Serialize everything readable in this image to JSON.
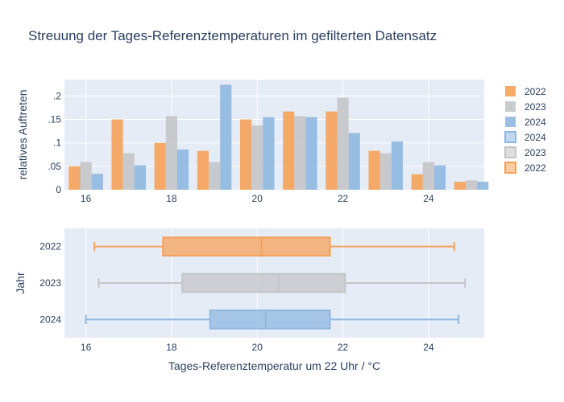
{
  "chart_data": [
    {
      "type": "bar",
      "title": "Streuung der Tages-Referenztemperaturen im gefilterten Datensatz",
      "ylabel": "relatives Auftreten",
      "xlabel": "",
      "x_ticks": [
        16,
        18,
        20,
        22,
        24
      ],
      "y_ticks": [
        0,
        0.05,
        0.1,
        0.15,
        0.2
      ],
      "xlim": [
        15.5,
        25.3
      ],
      "ylim": [
        0,
        0.235
      ],
      "grid": true,
      "categories": [
        16,
        17,
        18,
        19,
        20,
        21,
        22,
        23,
        24,
        25
      ],
      "series": [
        {
          "name": "2022",
          "color": "#F5A259",
          "values": [
            0.05,
            0.15,
            0.1,
            0.083,
            0.15,
            0.167,
            0.167,
            0.083,
            0.033,
            0.017
          ]
        },
        {
          "name": "2023",
          "color": "#C4C5C8",
          "values": [
            0.059,
            0.078,
            0.157,
            0.059,
            0.137,
            0.157,
            0.196,
            0.078,
            0.059,
            0.02
          ]
        },
        {
          "name": "2024",
          "color": "#8FB8E0",
          "values": [
            0.034,
            0.052,
            0.086,
            0.224,
            0.155,
            0.155,
            0.121,
            0.103,
            0.052,
            0.017
          ]
        }
      ]
    },
    {
      "type": "box",
      "xlabel": "Tages-Referenztemperatur um 22 Uhr / °C",
      "ylabel": "Jahr",
      "x_ticks": [
        16,
        18,
        20,
        22,
        24
      ],
      "xlim": [
        15.5,
        25.3
      ],
      "grid": true,
      "series": [
        {
          "name": "2022",
          "color": "#F5A259",
          "min": 16.2,
          "q1": 17.8,
          "median": 20.1,
          "q3": 21.7,
          "max": 24.6
        },
        {
          "name": "2023",
          "color": "#C4C5C8",
          "min": 16.3,
          "q1": 18.25,
          "median": 20.5,
          "q3": 22.05,
          "max": 24.85
        },
        {
          "name": "2024",
          "color": "#8FB8E0",
          "min": 16.0,
          "q1": 18.9,
          "median": 20.2,
          "q3": 21.7,
          "max": 24.7
        }
      ]
    }
  ],
  "legend": {
    "position": "right",
    "entries": [
      {
        "label": "2022",
        "color": "#F5A259",
        "style": "bar"
      },
      {
        "label": "2023",
        "color": "#C4C5C8",
        "style": "bar"
      },
      {
        "label": "2024",
        "color": "#8FB8E0",
        "style": "bar"
      },
      {
        "label": "2024",
        "color": "#8FB8E0",
        "style": "box"
      },
      {
        "label": "2023",
        "color": "#C4C5C8",
        "style": "box"
      },
      {
        "label": "2022",
        "color": "#F5A259",
        "style": "box"
      }
    ]
  },
  "colors": {
    "plot_bg": "#E5ECF6",
    "grid": "#ffffff",
    "text": "#2a3f5f"
  }
}
